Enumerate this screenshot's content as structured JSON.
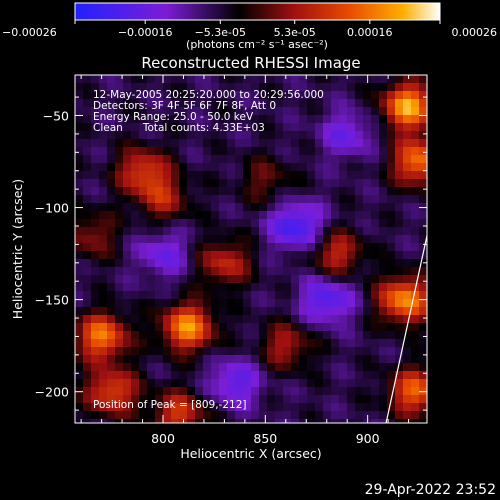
{
  "chart_data": {
    "type": "heatmap",
    "title": "Reconstructed RHESSI Image",
    "xlabel": "Heliocentric X (arcsec)",
    "ylabel": "Heliocentric Y (arcsec)",
    "xlim": [
      757,
      929
    ],
    "ylim": [
      -217,
      -28
    ],
    "xticks": [
      800,
      850,
      900
    ],
    "yticks": [
      -50,
      -100,
      -150,
      -200
    ],
    "colorbar": {
      "ticks": [
        "-0.00026",
        "-0.00016",
        "-5.3e-05",
        "5.3e-05",
        "0.00016",
        "0.00026"
      ],
      "unit_label": "(photons cm⁻² s⁻¹ asec⁻²)",
      "range": [
        -0.00026,
        0.00026
      ]
    },
    "annotations": {
      "time_range": "12-May-2005 20:25:20.000 to 20:29:56.000",
      "detectors": "Detectors: 3F 4F 5F 6F 7F 8F, Att 0",
      "energy_range": "Energy Range: 25.0 - 50.0 keV",
      "clean_counts": "Clean      Total counts: 4.33E+03",
      "peak_position": "Position of Peak = [809,-212]"
    },
    "limb_line": [
      [
        909,
        -217
      ],
      [
        932,
        -100
      ]
    ],
    "blobs": [
      {
        "x": 920,
        "y": -45,
        "value": 0.00026
      },
      {
        "x": 925,
        "y": -75,
        "value": 0.00022
      },
      {
        "x": 918,
        "y": -150,
        "value": 0.00024
      },
      {
        "x": 923,
        "y": -200,
        "value": 0.0002
      },
      {
        "x": 770,
        "y": -170,
        "value": 0.00022
      },
      {
        "x": 775,
        "y": -200,
        "value": 0.00018
      },
      {
        "x": 812,
        "y": -165,
        "value": 0.00024
      },
      {
        "x": 790,
        "y": -80,
        "value": 0.00016
      },
      {
        "x": 800,
        "y": -95,
        "value": 0.00012
      },
      {
        "x": 830,
        "y": -130,
        "value": 0.00014
      },
      {
        "x": 860,
        "y": -175,
        "value": 0.00012
      },
      {
        "x": 885,
        "y": -125,
        "value": 0.00014
      },
      {
        "x": 808,
        "y": -212,
        "value": 0.00016
      },
      {
        "x": 765,
        "y": -115,
        "value": 0.0001
      },
      {
        "x": 850,
        "y": -85,
        "value": 8e-05
      }
    ],
    "negatives": [
      {
        "x": 865,
        "y": -110,
        "value": -0.00016
      },
      {
        "x": 880,
        "y": -150,
        "value": -0.00014
      },
      {
        "x": 835,
        "y": -195,
        "value": -0.00012
      },
      {
        "x": 800,
        "y": -125,
        "value": -0.0001
      },
      {
        "x": 890,
        "y": -60,
        "value": -0.0001
      }
    ]
  },
  "footer": {
    "date": "29-Apr-2022 23:52"
  }
}
